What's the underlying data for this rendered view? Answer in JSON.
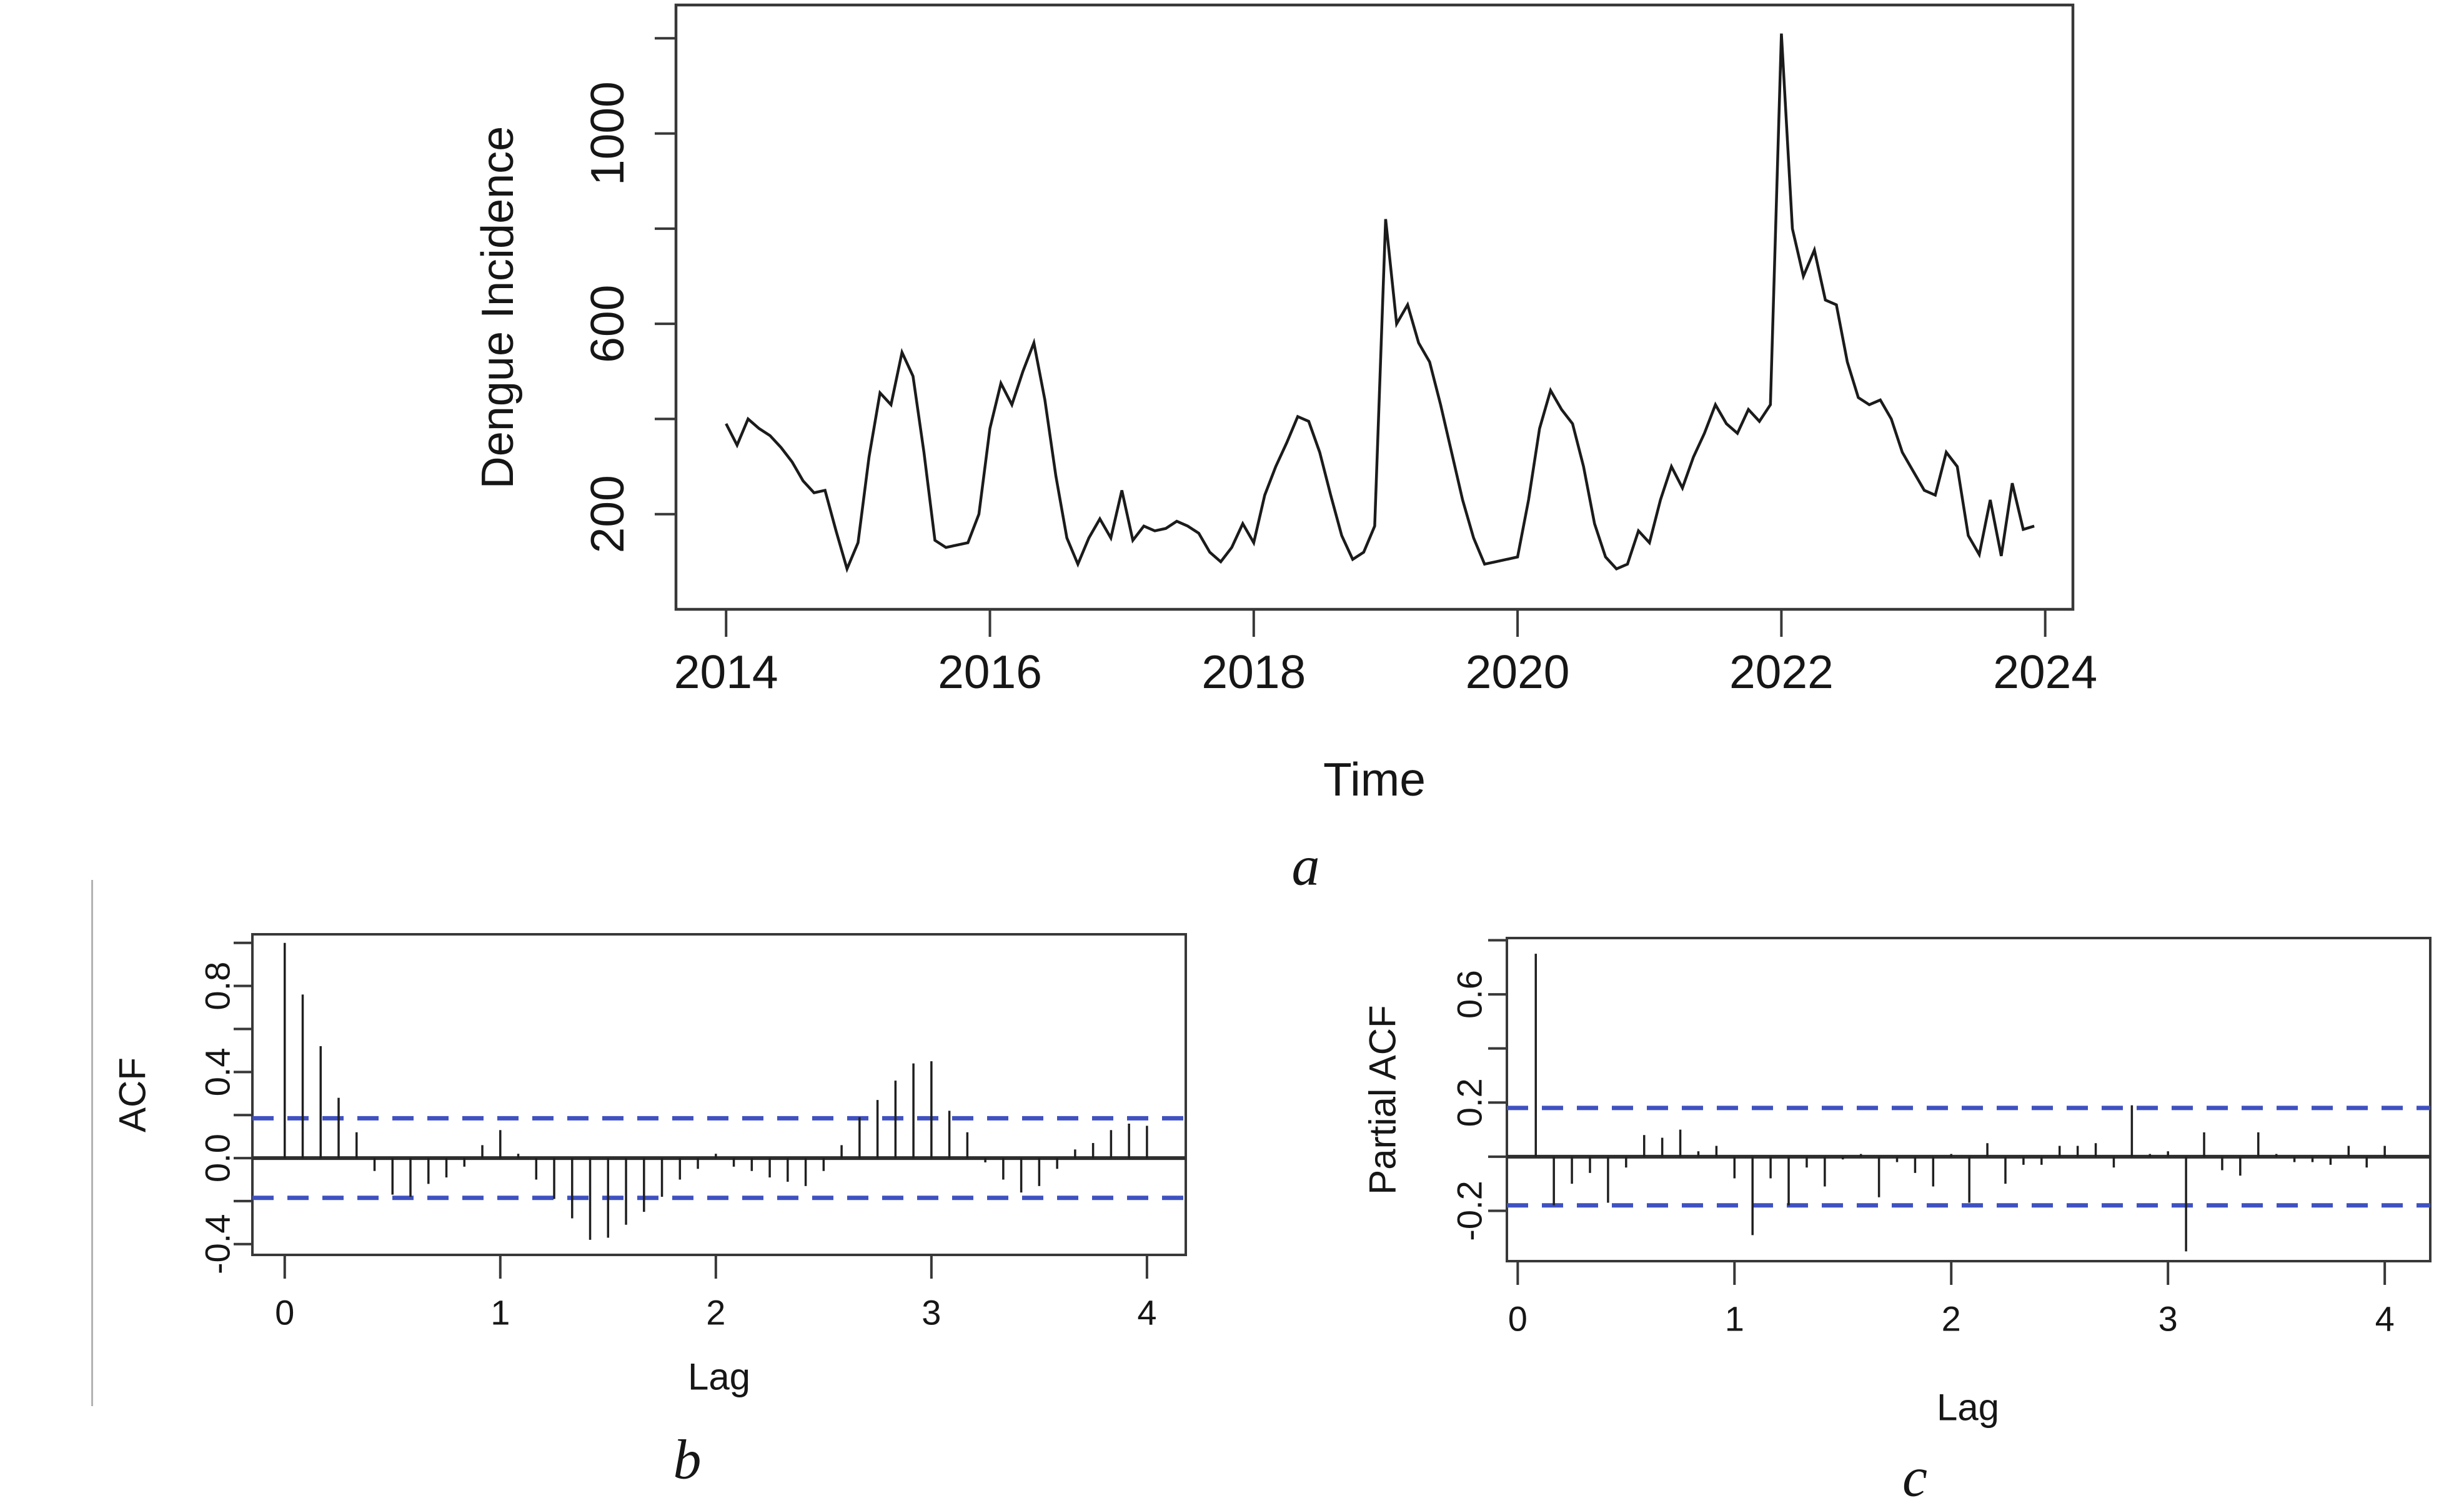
{
  "figure": {
    "background": "#ffffff",
    "colors": {
      "series_line": "#1b1b1b",
      "axis": "#383838",
      "bar": "#1f1f1f",
      "zero_line": "#2e2e2e",
      "confidence_dash": "#3f51c1",
      "side_divider": "#b3b3b3",
      "text": "#161616"
    }
  },
  "chart_data": [
    {
      "id": "dengue-timeseries",
      "type": "line",
      "panel": "a",
      "xlabel": "Time",
      "ylabel": "Dengue Incidence",
      "x_start": 2014.0,
      "points_per_year": 12,
      "xlim": [
        2013.62,
        2024.21
      ],
      "ylim": [
        0,
        1270
      ],
      "xticks": [
        [
          2014,
          "2014"
        ],
        [
          2016,
          "2016"
        ],
        [
          2018,
          "2018"
        ],
        [
          2020,
          "2020"
        ],
        [
          2022,
          "2022"
        ],
        [
          2024,
          "2024"
        ]
      ],
      "yticks_all": [
        200,
        400,
        600,
        800,
        1000,
        1200
      ],
      "yticks_labeled": [
        [
          200,
          "200"
        ],
        [
          600,
          "600"
        ],
        [
          1000,
          "1000"
        ]
      ],
      "grid": false,
      "values": [
        390,
        345,
        400,
        380,
        365,
        340,
        310,
        270,
        245,
        250,
        165,
        85,
        140,
        320,
        455,
        430,
        540,
        490,
        330,
        145,
        130,
        135,
        140,
        200,
        380,
        475,
        430,
        500,
        560,
        440,
        280,
        150,
        95,
        150,
        190,
        150,
        250,
        145,
        175,
        165,
        170,
        185,
        175,
        160,
        120,
        100,
        130,
        180,
        140,
        240,
        300,
        350,
        405,
        395,
        330,
        240,
        155,
        105,
        120,
        175,
        820,
        600,
        640,
        560,
        520,
        430,
        330,
        230,
        150,
        95,
        100,
        105,
        110,
        230,
        380,
        460,
        420,
        390,
        300,
        180,
        110,
        85,
        95,
        165,
        140,
        230,
        300,
        255,
        320,
        370,
        430,
        390,
        370,
        420,
        395,
        430,
        1210,
        800,
        700,
        755,
        650,
        640,
        520,
        445,
        430,
        440,
        400,
        330,
        290,
        250,
        240,
        330,
        300,
        155,
        115,
        230,
        112,
        265,
        168,
        175
      ]
    },
    {
      "id": "acf",
      "type": "bar",
      "panel": "b",
      "xlabel": "Lag",
      "ylabel": "ACF",
      "lag_start_index": 0,
      "lags_per_year": 12,
      "confidence_level": 0.185,
      "xlim": [
        -0.15,
        4.18
      ],
      "ylim": [
        -0.45,
        1.04
      ],
      "xticks": [
        [
          0,
          "0"
        ],
        [
          1,
          "1"
        ],
        [
          2,
          "2"
        ],
        [
          3,
          "3"
        ],
        [
          4,
          "4"
        ]
      ],
      "yticks_all": [
        -0.4,
        -0.2,
        0,
        0.2,
        0.4,
        0.6,
        0.8,
        1.0
      ],
      "yticks_labeled": [
        [
          -0.4,
          "-0.4"
        ],
        [
          0,
          "0.0"
        ],
        [
          0.4,
          "0.4"
        ],
        [
          0.8,
          "0.8"
        ]
      ],
      "grid": false,
      "values": [
        1.0,
        0.76,
        0.52,
        0.28,
        0.12,
        -0.06,
        -0.17,
        -0.18,
        -0.12,
        -0.09,
        -0.04,
        0.06,
        0.13,
        0.02,
        -0.1,
        -0.19,
        -0.28,
        -0.38,
        -0.37,
        -0.31,
        -0.25,
        -0.18,
        -0.1,
        -0.05,
        0.02,
        -0.04,
        -0.06,
        -0.09,
        -0.11,
        -0.13,
        -0.06,
        0.06,
        0.19,
        0.27,
        0.36,
        0.44,
        0.45,
        0.22,
        0.12,
        -0.02,
        -0.1,
        -0.16,
        -0.13,
        -0.05,
        0.04,
        0.07,
        0.13,
        0.16,
        0.15
      ]
    },
    {
      "id": "pacf",
      "type": "bar",
      "panel": "c",
      "xlabel": "Lag",
      "ylabel": "Partial ACF",
      "lag_start_index": 1,
      "lags_per_year": 12,
      "confidence_level": 0.18,
      "xlim": [
        -0.05,
        4.21
      ],
      "ylim": [
        -0.386,
        0.808
      ],
      "xticks": [
        [
          0,
          "0"
        ],
        [
          1,
          "1"
        ],
        [
          2,
          "2"
        ],
        [
          3,
          "3"
        ],
        [
          4,
          "4"
        ]
      ],
      "yticks_all": [
        -0.2,
        0,
        0.2,
        0.4,
        0.6,
        0.8
      ],
      "yticks_labeled": [
        [
          -0.2,
          "-0.2"
        ],
        [
          0.2,
          "0.2"
        ],
        [
          0.6,
          "0.6"
        ]
      ],
      "grid": false,
      "values": [
        0.75,
        -0.18,
        -0.1,
        -0.06,
        -0.17,
        -0.04,
        0.08,
        0.07,
        0.1,
        0.02,
        0.04,
        -0.08,
        -0.29,
        -0.08,
        -0.18,
        -0.04,
        -0.11,
        -0.01,
        0.01,
        -0.15,
        -0.02,
        -0.06,
        -0.11,
        0.01,
        -0.17,
        0.05,
        -0.1,
        -0.03,
        -0.03,
        0.04,
        0.04,
        0.05,
        -0.04,
        0.19,
        0.01,
        0.02,
        -0.35,
        0.09,
        -0.05,
        -0.07,
        0.09,
        0.01,
        -0.02,
        -0.02,
        -0.03,
        0.04,
        -0.04,
        0.04
      ]
    }
  ]
}
